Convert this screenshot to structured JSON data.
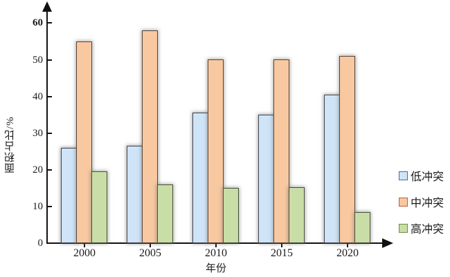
{
  "chart_data": {
    "type": "bar",
    "title": "",
    "categories": [
      "2000",
      "2005",
      "2010",
      "2015",
      "2020"
    ],
    "series": [
      {
        "name": "低冲突",
        "fill": "#cfe4f7",
        "edge": "#3f4450",
        "swatch_edge": "#3a6fa8",
        "values": [
          26,
          26.5,
          35.5,
          35,
          40.5
        ]
      },
      {
        "name": "中冲突",
        "fill": "#f8c8a0",
        "edge": "#53443a",
        "swatch_edge": "#bf5b3d",
        "values": [
          55,
          58,
          50,
          50,
          51
        ]
      },
      {
        "name": "高冲突",
        "fill": "#c9dda6",
        "edge": "#454f38",
        "swatch_edge": "#6d8c3f",
        "values": [
          19.5,
          16,
          15,
          15.3,
          8.5
        ]
      }
    ],
    "xlabel": "年份",
    "ylabel": "面积占比/%",
    "ylim": [
      0,
      60
    ],
    "yticks": [
      0,
      10,
      20,
      30,
      40,
      50,
      60
    ],
    "legend_position": "right",
    "grid": false,
    "background": "#ffffff",
    "axis_color": "#111111"
  }
}
